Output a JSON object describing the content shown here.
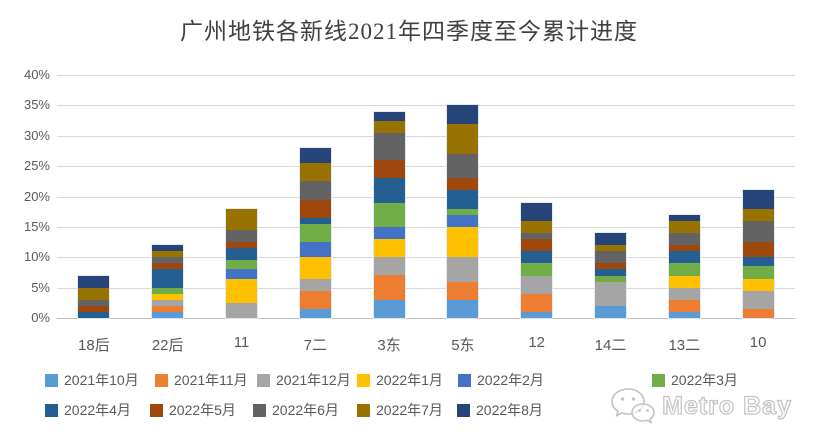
{
  "chart_data": {
    "type": "bar",
    "stacked": true,
    "title": "广州地铁各新线2021年四季度至今累计进度",
    "categories": [
      "18后",
      "22后",
      "11",
      "7二",
      "3东",
      "5东",
      "12",
      "14二",
      "13二",
      "10"
    ],
    "series": [
      {
        "name": "2021年10月",
        "color": "#5B9BD5",
        "values": [
          0,
          1,
          0,
          1.5,
          3,
          3,
          1,
          2,
          1,
          0
        ]
      },
      {
        "name": "2021年11月",
        "color": "#ED7D31",
        "values": [
          0,
          1,
          0,
          3,
          4,
          3,
          3,
          0,
          2,
          1.5
        ]
      },
      {
        "name": "2021年12月",
        "color": "#A5A5A5",
        "values": [
          0,
          1,
          2.5,
          2,
          3,
          4,
          3,
          4,
          2,
          3
        ]
      },
      {
        "name": "2022年1月",
        "color": "#FFC000",
        "values": [
          0,
          1,
          4,
          3.5,
          3,
          5,
          0,
          0,
          2,
          2
        ]
      },
      {
        "name": "2022年2月",
        "color": "#4472C4",
        "values": [
          0,
          0,
          1.5,
          2.5,
          2,
          2,
          0,
          0,
          0,
          0
        ]
      },
      {
        "name": "2022年3月",
        "color": "#70AD47",
        "values": [
          0,
          1,
          1.5,
          3,
          4,
          1,
          2,
          1,
          2,
          2
        ]
      },
      {
        "name": "2022年4月",
        "color": "#255E91",
        "values": [
          1,
          3,
          2,
          1,
          4,
          3,
          2,
          1,
          2,
          1.5
        ]
      },
      {
        "name": "2022年5月",
        "color": "#9E480E",
        "values": [
          1,
          1,
          1,
          3,
          3,
          2,
          2,
          1,
          1,
          2.5
        ]
      },
      {
        "name": "2022年6月",
        "color": "#636363",
        "values": [
          1,
          1,
          2,
          3,
          4.5,
          4,
          1,
          2,
          2,
          3.5
        ]
      },
      {
        "name": "2022年7月",
        "color": "#997300",
        "values": [
          2,
          1,
          3.5,
          3,
          2,
          5,
          2,
          1,
          2,
          2
        ]
      },
      {
        "name": "2022年8月",
        "color": "#264478",
        "values": [
          2,
          1,
          0,
          2.5,
          1.5,
          3,
          3,
          2,
          1,
          3
        ]
      }
    ],
    "totals": [
      7,
      12,
      18,
      28,
      34,
      35,
      19,
      14,
      17,
      21
    ],
    "xlabel": "",
    "ylabel": "",
    "ylim": [
      0,
      40
    ],
    "ytick_step": 5,
    "ytick_suffix": "%",
    "grid": true,
    "legend_position": "bottom",
    "legend_rows": [
      [
        0,
        1,
        2,
        3,
        4,
        5
      ],
      [
        6,
        7,
        8,
        9,
        10
      ]
    ]
  },
  "watermark": {
    "label": "Metro Bay",
    "icon": "wechat-icon"
  },
  "colors": {
    "grid": "#D9D9D9",
    "axis": "#BFBFBF",
    "tick_label": "#595959",
    "title": "#404040",
    "legend_label": "#595959",
    "background": "#FFFFFF"
  }
}
